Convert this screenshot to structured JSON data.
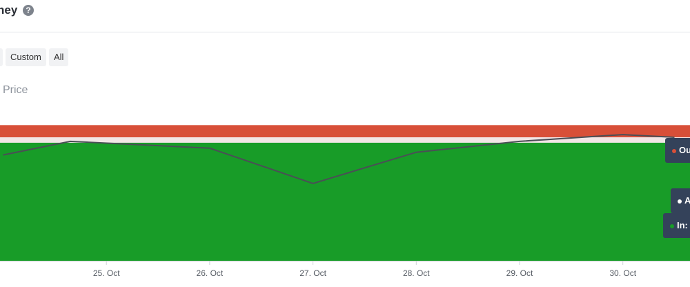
{
  "header": {
    "title": "ney",
    "help_glyph": "?"
  },
  "range_buttons": [
    {
      "label": "Custom"
    },
    {
      "label": "All"
    }
  ],
  "legend": {
    "price_label": "Price"
  },
  "colors": {
    "out": "#d84f38",
    "in": "#189c28",
    "at": "#f2e6e6",
    "price_line": "#4a4f56",
    "tag_bg": "#34425a"
  },
  "tags": {
    "out_label": "Ou",
    "at_label": "A",
    "in_label": "In:"
  },
  "chart_data": {
    "type": "area",
    "x": [
      "25. Oct",
      "26. Oct",
      "27. Oct",
      "28. Oct",
      "29. Oct",
      "30. Oct"
    ],
    "series": [
      {
        "name": "In",
        "stack": "bottom",
        "color": "#189c28"
      },
      {
        "name": "At",
        "stack": "middle",
        "color": "#f2e6e6"
      },
      {
        "name": "Out",
        "stack": "top",
        "color": "#d84f38"
      },
      {
        "name": "Price",
        "type": "line",
        "color": "#4a4f56",
        "points": [
          {
            "x": 24.0,
            "y": 0.78
          },
          {
            "x": 24.65,
            "y": 0.88
          },
          {
            "x": 26.0,
            "y": 0.83
          },
          {
            "x": 27.0,
            "y": 0.57
          },
          {
            "x": 28.0,
            "y": 0.8
          },
          {
            "x": 29.0,
            "y": 0.88
          },
          {
            "x": 30.0,
            "y": 0.93
          },
          {
            "x": 30.5,
            "y": 0.91
          }
        ]
      }
    ],
    "xlim": [
      23.97,
      30.65
    ],
    "ylim": [
      0,
      1.2
    ],
    "bands": {
      "in_top": 0.87,
      "at_top": 0.91,
      "out_top": 1.0
    },
    "grid": false
  }
}
